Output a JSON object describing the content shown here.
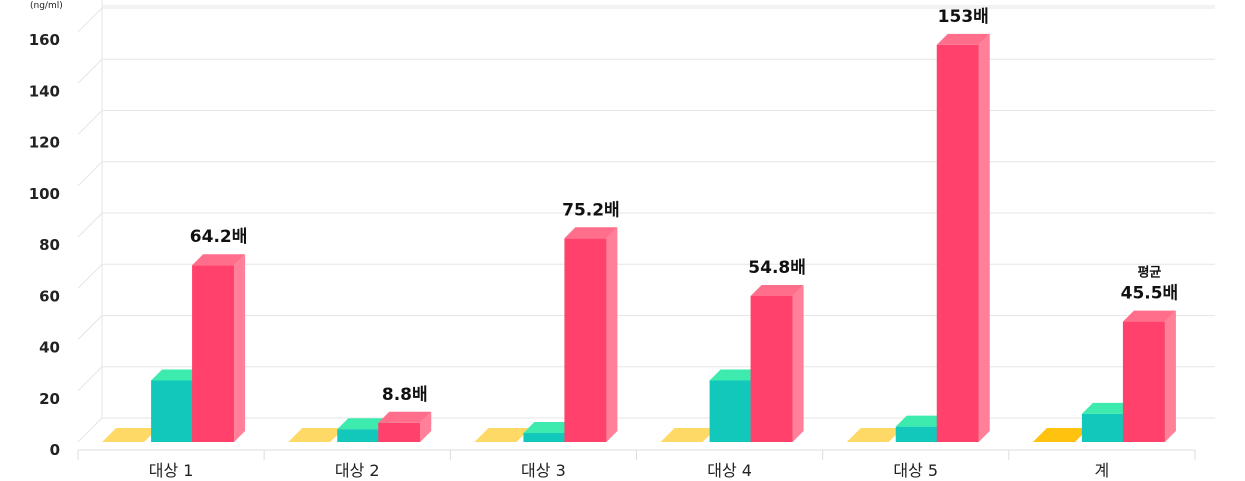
{
  "chart_data": {
    "type": "bar",
    "unit_label": "(ng/ml)",
    "ylim": [
      0,
      160
    ],
    "y_ticks": [
      0,
      20,
      40,
      60,
      80,
      100,
      120,
      140,
      160
    ],
    "grid": true,
    "categories": [
      "대상 1",
      "대상 2",
      "대상 3",
      "대상 4",
      "대상 5",
      "계"
    ],
    "series": [
      {
        "values": [
          0,
          0,
          0,
          0,
          0,
          0
        ]
      },
      {
        "values": [
          24,
          5,
          3.5,
          24,
          6,
          11
        ]
      },
      {
        "values": [
          69,
          7.5,
          79.5,
          57,
          155,
          47
        ]
      }
    ],
    "annotations": [
      {
        "category_index": 0,
        "text": "64.2배"
      },
      {
        "category_index": 1,
        "text": "8.8배"
      },
      {
        "category_index": 2,
        "text": "75.2배"
      },
      {
        "category_index": 3,
        "text": "54.8배"
      },
      {
        "category_index": 4,
        "text": "153배"
      },
      {
        "category_index": 5,
        "prefix": "평균",
        "text": "45.5배"
      }
    ],
    "colors": {
      "series1_front": "#FFD966",
      "series1_last_front": "#FFC20E",
      "series2_front": "#12C8BA",
      "series2_top": "#3DEBAE",
      "series3_front": "#FF416B",
      "series3_top": "#FF6F8C",
      "series3_side": "#FF8098",
      "grid": "#E6E6E6"
    }
  }
}
